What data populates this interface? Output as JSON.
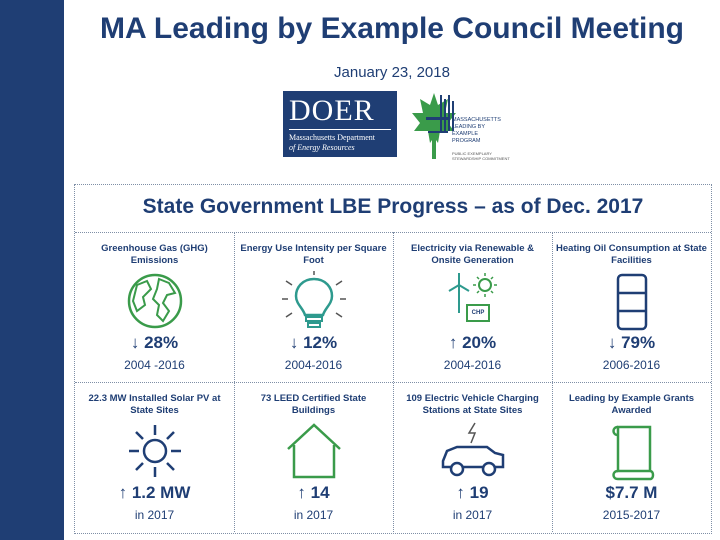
{
  "header": {
    "title": "MA Leading by Example Council Meeting",
    "date": "January 23, 2018"
  },
  "logos": {
    "doer": {
      "wordmark": "DOER",
      "line1": "Massachusetts Department",
      "line2": "of Energy Resources"
    },
    "lbe": {
      "line1": "MASSACHUSETTS",
      "line2": "LEADING BY",
      "line3": "EXAMPLE",
      "line4": "PROGRAM",
      "sub1": "PUBLIC EXEMPLARY",
      "sub2": "STEWARDSHIP COMMITMENT"
    }
  },
  "panel": {
    "title": "State Government LBE Progress – as of Dec. 2017",
    "cells": [
      {
        "label": "Greenhouse Gas (GHG) Emissions",
        "value": "↓ 28%",
        "period": "2004 -2016",
        "icon": "globe-icon"
      },
      {
        "label": "Energy Use Intensity per Square Foot",
        "value": "↓ 12%",
        "period": "2004-2016",
        "icon": "lightbulb-icon"
      },
      {
        "label": "Electricity via Renewable & Onsite Generation",
        "value": "↑ 20%",
        "period": "2004-2016",
        "icon": "renewable-icon",
        "icon_text": "CHP"
      },
      {
        "label": "Heating Oil Consumption at State Facilities",
        "value": "↓ 79%",
        "period": "2006-2016",
        "icon": "oil-barrel-icon"
      },
      {
        "label": "22.3 MW Installed Solar PV at State Sites",
        "value": "↑ 1.2 MW",
        "period": "in 2017",
        "icon": "sun-icon"
      },
      {
        "label": "73 LEED Certified State Buildings",
        "value": "↑ 14",
        "period": "in 2017",
        "icon": "house-icon"
      },
      {
        "label": "109 Electric Vehicle Charging Stations at State Sites",
        "value": "↑ 19",
        "period": "in 2017",
        "icon": "electric-car-icon"
      },
      {
        "label": "Leading by Example Grants Awarded",
        "value": "$7.7 M",
        "period": "2015-2017",
        "icon": "scroll-icon"
      }
    ]
  },
  "colors": {
    "navy": "#1f3e74",
    "teal": "#2e9a8e",
    "green": "#3a9b4a"
  }
}
